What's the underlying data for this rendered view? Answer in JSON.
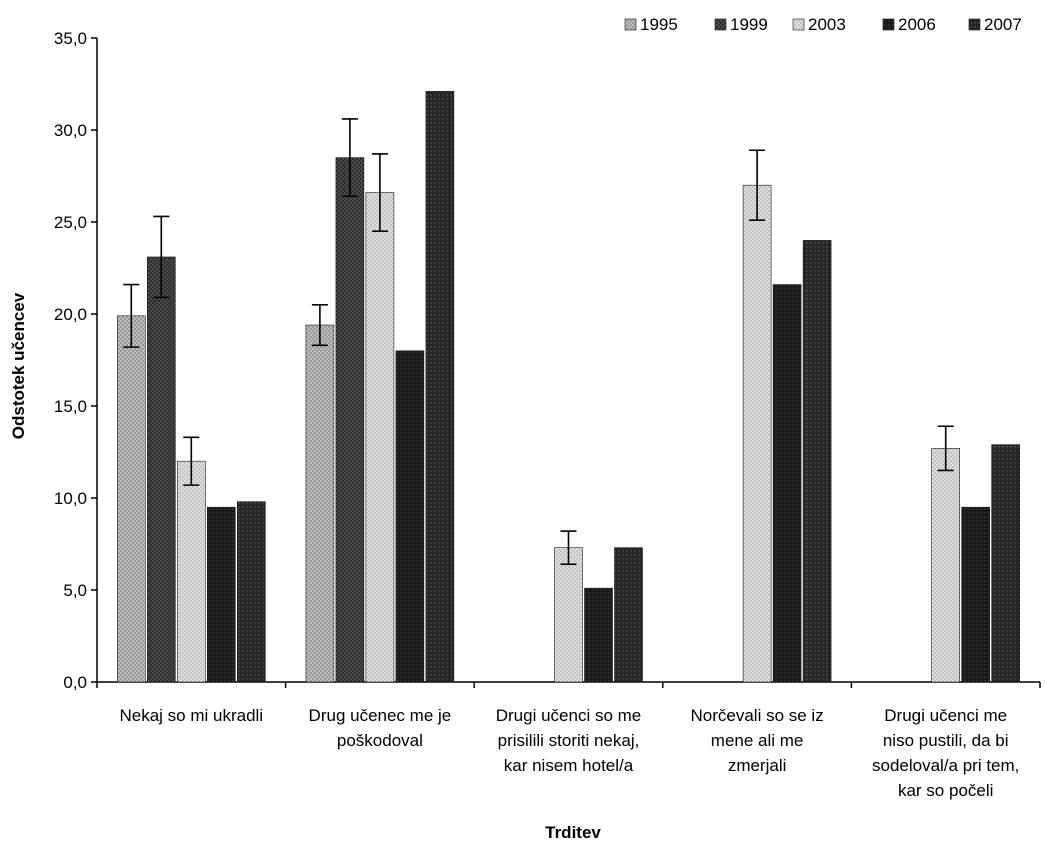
{
  "chart_data": {
    "type": "bar",
    "title": "",
    "xlabel": "Trditev",
    "ylabel": "Odstotek učencev",
    "ylim": [
      0,
      35
    ],
    "yticks": [
      "0,0",
      "5,0",
      "10,0",
      "15,0",
      "20,0",
      "25,0",
      "30,0",
      "35,0"
    ],
    "ytick_values": [
      0,
      5,
      10,
      15,
      20,
      25,
      30,
      35
    ],
    "grid": false,
    "legend_position": "top-right",
    "categories": [
      [
        "Nekaj so mi ukradli"
      ],
      [
        "Drug učenec me je",
        "poškodoval"
      ],
      [
        "Drugi učenci so me",
        "prisilili storiti nekaj,",
        "kar nisem hotel/a"
      ],
      [
        "Norčevali so se iz",
        "mene ali me",
        "zmerjali"
      ],
      [
        "Drugi učenci me",
        "niso pustili, da bi",
        "sodeloval/a pri tem,",
        "kar so počeli"
      ]
    ],
    "series": [
      {
        "name": "1995",
        "color": "#a6a6a6",
        "values": [
          19.9,
          19.4,
          null,
          null,
          null
        ],
        "errors": [
          1.7,
          1.1,
          null,
          null,
          null
        ]
      },
      {
        "name": "1999",
        "color": "#3c3c3c",
        "values": [
          23.1,
          28.5,
          null,
          null,
          null
        ],
        "errors": [
          2.2,
          2.1,
          null,
          null,
          null
        ]
      },
      {
        "name": "2003",
        "color": "#cfcfcf",
        "values": [
          12.0,
          26.6,
          7.3,
          27.0,
          12.7
        ],
        "errors": [
          1.3,
          2.1,
          0.9,
          1.9,
          1.2
        ]
      },
      {
        "name": "2006",
        "color": "#222222",
        "values": [
          9.5,
          18.0,
          5.1,
          21.6,
          9.5
        ],
        "errors": [
          null,
          null,
          null,
          null,
          null
        ]
      },
      {
        "name": "2007",
        "color": "#303030",
        "values": [
          9.8,
          32.1,
          7.3,
          24.0,
          12.9
        ],
        "errors": [
          null,
          null,
          null,
          null,
          null
        ]
      }
    ]
  }
}
